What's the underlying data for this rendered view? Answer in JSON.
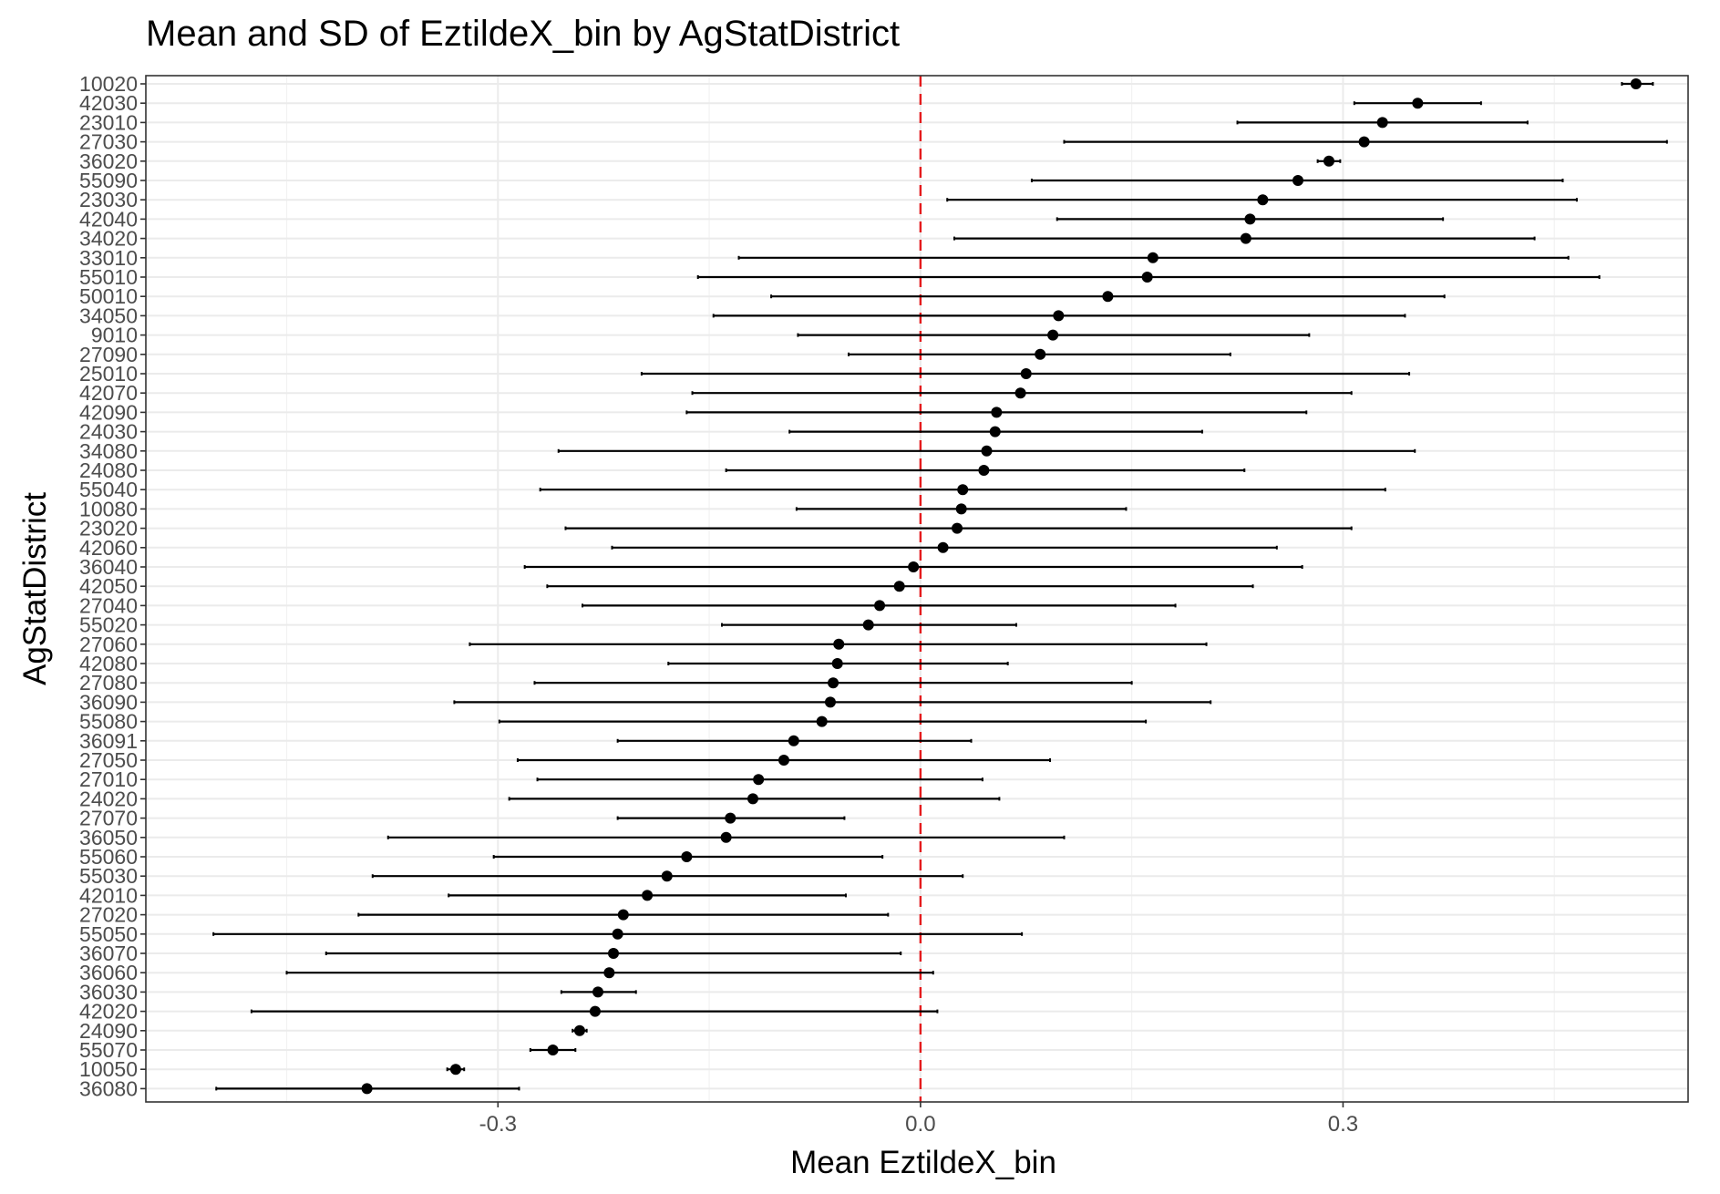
{
  "chart_data": {
    "type": "errorbar",
    "title": "Mean and SD of EztildeX_bin by AgStatDistrict",
    "xlabel": "Mean EztildeX_bin",
    "ylabel": "AgStatDistrict",
    "xlim": [
      -0.55,
      0.545
    ],
    "x_ticks": [
      -0.3,
      0.0,
      0.3
    ],
    "x_tick_labels": [
      "-0.3",
      "0.0",
      "0.3"
    ],
    "reference_line": {
      "x": 0.0,
      "style": "dashed",
      "color": "#e41a1c"
    },
    "grid": true,
    "legend": "none",
    "colors": {
      "points": "#000000",
      "bars": "#000000",
      "grid": "#ebebeb",
      "border": "#333333"
    },
    "series": [
      {
        "district": "10020",
        "mean": 0.508,
        "lo": 0.498,
        "hi": 0.52
      },
      {
        "district": "42030",
        "mean": 0.353,
        "lo": 0.308,
        "hi": 0.398
      },
      {
        "district": "23010",
        "mean": 0.328,
        "lo": 0.225,
        "hi": 0.431
      },
      {
        "district": "27030",
        "mean": 0.315,
        "lo": 0.102,
        "hi": 0.53
      },
      {
        "district": "36020",
        "mean": 0.29,
        "lo": 0.282,
        "hi": 0.298
      },
      {
        "district": "55090",
        "mean": 0.268,
        "lo": 0.079,
        "hi": 0.456
      },
      {
        "district": "23030",
        "mean": 0.243,
        "lo": 0.019,
        "hi": 0.466
      },
      {
        "district": "42040",
        "mean": 0.234,
        "lo": 0.097,
        "hi": 0.371
      },
      {
        "district": "34020",
        "mean": 0.231,
        "lo": 0.024,
        "hi": 0.436
      },
      {
        "district": "33010",
        "mean": 0.165,
        "lo": -0.129,
        "hi": 0.46
      },
      {
        "district": "55010",
        "mean": 0.161,
        "lo": -0.158,
        "hi": 0.482
      },
      {
        "district": "50010",
        "mean": 0.133,
        "lo": -0.106,
        "hi": 0.372
      },
      {
        "district": "34050",
        "mean": 0.098,
        "lo": -0.147,
        "hi": 0.344
      },
      {
        "district": "9010",
        "mean": 0.094,
        "lo": -0.087,
        "hi": 0.276
      },
      {
        "district": "27090",
        "mean": 0.085,
        "lo": -0.051,
        "hi": 0.22
      },
      {
        "district": "25010",
        "mean": 0.075,
        "lo": -0.198,
        "hi": 0.347
      },
      {
        "district": "42070",
        "mean": 0.071,
        "lo": -0.162,
        "hi": 0.306
      },
      {
        "district": "42090",
        "mean": 0.054,
        "lo": -0.166,
        "hi": 0.274
      },
      {
        "district": "24030",
        "mean": 0.053,
        "lo": -0.093,
        "hi": 0.2
      },
      {
        "district": "34080",
        "mean": 0.047,
        "lo": -0.257,
        "hi": 0.351
      },
      {
        "district": "24080",
        "mean": 0.045,
        "lo": -0.138,
        "hi": 0.23
      },
      {
        "district": "55040",
        "mean": 0.03,
        "lo": -0.27,
        "hi": 0.33
      },
      {
        "district": "10080",
        "mean": 0.029,
        "lo": -0.088,
        "hi": 0.146
      },
      {
        "district": "23020",
        "mean": 0.026,
        "lo": -0.252,
        "hi": 0.306
      },
      {
        "district": "42060",
        "mean": 0.016,
        "lo": -0.219,
        "hi": 0.253
      },
      {
        "district": "36040",
        "mean": -0.005,
        "lo": -0.281,
        "hi": 0.271
      },
      {
        "district": "42050",
        "mean": -0.015,
        "lo": -0.265,
        "hi": 0.236
      },
      {
        "district": "27040",
        "mean": -0.029,
        "lo": -0.24,
        "hi": 0.181
      },
      {
        "district": "55020",
        "mean": -0.037,
        "lo": -0.141,
        "hi": 0.068
      },
      {
        "district": "27060",
        "mean": -0.058,
        "lo": -0.32,
        "hi": 0.203
      },
      {
        "district": "42080",
        "mean": -0.059,
        "lo": -0.179,
        "hi": 0.062
      },
      {
        "district": "27080",
        "mean": -0.062,
        "lo": -0.274,
        "hi": 0.15
      },
      {
        "district": "36090",
        "mean": -0.064,
        "lo": -0.331,
        "hi": 0.206
      },
      {
        "district": "55080",
        "mean": -0.07,
        "lo": -0.299,
        "hi": 0.16
      },
      {
        "district": "36091",
        "mean": -0.09,
        "lo": -0.215,
        "hi": 0.036
      },
      {
        "district": "27050",
        "mean": -0.097,
        "lo": -0.286,
        "hi": 0.092
      },
      {
        "district": "27010",
        "mean": -0.115,
        "lo": -0.272,
        "hi": 0.044
      },
      {
        "district": "24020",
        "mean": -0.119,
        "lo": -0.292,
        "hi": 0.056
      },
      {
        "district": "27070",
        "mean": -0.135,
        "lo": -0.215,
        "hi": -0.054
      },
      {
        "district": "36050",
        "mean": -0.138,
        "lo": -0.378,
        "hi": 0.102
      },
      {
        "district": "55060",
        "mean": -0.166,
        "lo": -0.303,
        "hi": -0.027
      },
      {
        "district": "55030",
        "mean": -0.18,
        "lo": -0.389,
        "hi": 0.03
      },
      {
        "district": "42010",
        "mean": -0.194,
        "lo": -0.335,
        "hi": -0.053
      },
      {
        "district": "27020",
        "mean": -0.211,
        "lo": -0.399,
        "hi": -0.023
      },
      {
        "district": "55050",
        "mean": -0.215,
        "lo": -0.502,
        "hi": 0.072
      },
      {
        "district": "36070",
        "mean": -0.218,
        "lo": -0.422,
        "hi": -0.014
      },
      {
        "district": "36060",
        "mean": -0.221,
        "lo": -0.45,
        "hi": 0.009
      },
      {
        "district": "36030",
        "mean": -0.229,
        "lo": -0.255,
        "hi": -0.202
      },
      {
        "district": "42020",
        "mean": -0.231,
        "lo": -0.475,
        "hi": 0.012
      },
      {
        "district": "24090",
        "mean": -0.242,
        "lo": -0.247,
        "hi": -0.237
      },
      {
        "district": "55070",
        "mean": -0.261,
        "lo": -0.277,
        "hi": -0.245
      },
      {
        "district": "10050",
        "mean": -0.33,
        "lo": -0.336,
        "hi": -0.324
      },
      {
        "district": "36080",
        "mean": -0.393,
        "lo": -0.5,
        "hi": -0.285
      }
    ]
  }
}
